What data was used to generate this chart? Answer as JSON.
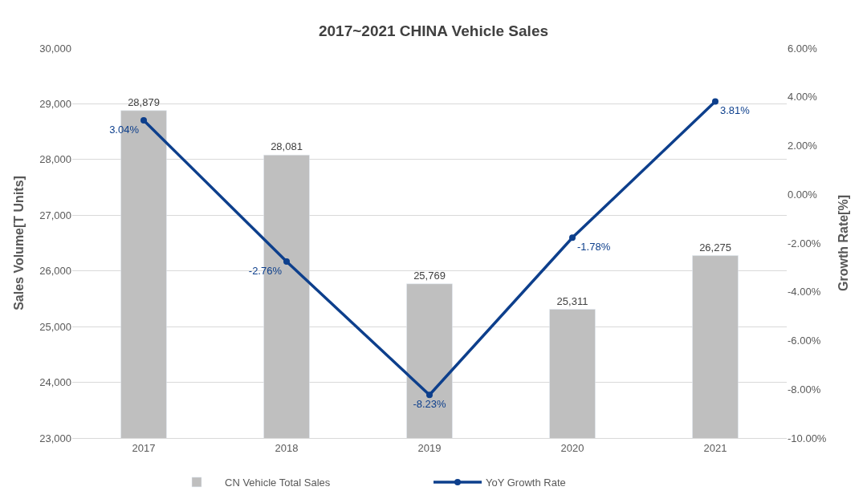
{
  "chart_data": {
    "type": "bar",
    "title": "2017~2021 CHINA Vehicle Sales",
    "ylabel": "Sales Volume[T Units]",
    "y2label": "Growth Rate[%]",
    "categories": [
      "2017",
      "2018",
      "2019",
      "2020",
      "2021"
    ],
    "series": [
      {
        "name": "CN Vehicle Total Sales",
        "color": "#bfbfbf",
        "values": [
          28879,
          28081,
          25769,
          25311,
          26275
        ],
        "value_labels": [
          "28,879",
          "28,081",
          "25,769",
          "25,311",
          "26,275"
        ]
      },
      {
        "name": "YoY Growth Rate",
        "type": "line",
        "axis": "y2",
        "color": "#0d3f8c",
        "marker": "circle",
        "line_style": "solid",
        "values": [
          3.04,
          -2.76,
          -8.23,
          -1.78,
          3.81
        ],
        "value_labels": [
          "3.04%",
          "-2.76%",
          "-8.23%",
          "-1.78%",
          "3.81%"
        ]
      }
    ],
    "ylim": [
      23000,
      30000
    ],
    "yticks": [
      {
        "value": 23000,
        "label": "23,000"
      },
      {
        "value": 24000,
        "label": "24,000"
      },
      {
        "value": 25000,
        "label": "25,000"
      },
      {
        "value": 26000,
        "label": "26,000"
      },
      {
        "value": 27000,
        "label": "27,000"
      },
      {
        "value": 28000,
        "label": "28,000"
      },
      {
        "value": 29000,
        "label": "29,000"
      },
      {
        "value": 30000,
        "label": "30,000"
      }
    ],
    "y2lim": [
      -10,
      6
    ],
    "y2ticks": [
      {
        "value": -10,
        "label": "-10.00%"
      },
      {
        "value": -8,
        "label": "-8.00%"
      },
      {
        "value": -6,
        "label": "-6.00%"
      },
      {
        "value": -4,
        "label": "-4.00%"
      },
      {
        "value": -2,
        "label": "-2.00%"
      },
      {
        "value": 0,
        "label": "0.00%"
      },
      {
        "value": 2,
        "label": "2.00%"
      },
      {
        "value": 4,
        "label": "4.00%"
      },
      {
        "value": 6,
        "label": "6.00%"
      }
    ],
    "grid": "y",
    "legend": "bottom"
  }
}
